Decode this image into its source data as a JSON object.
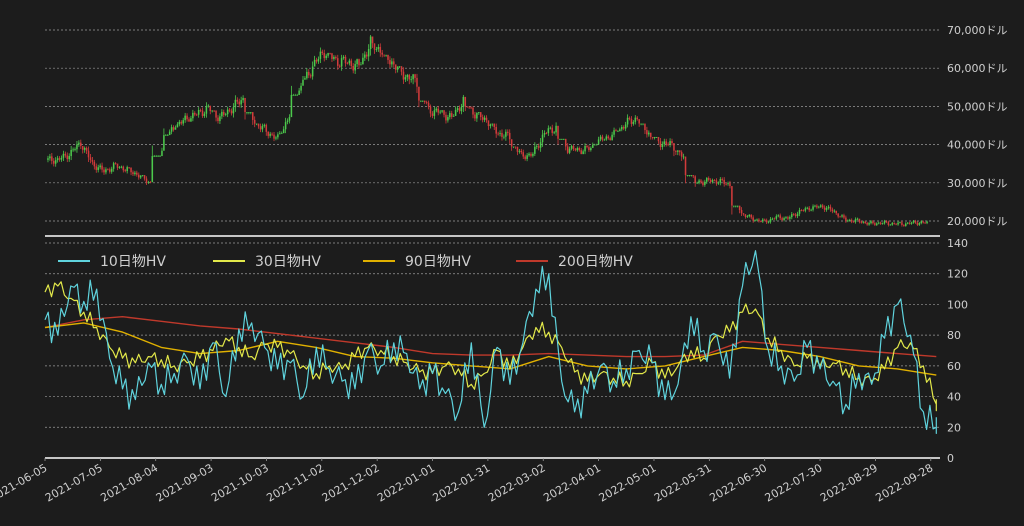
{
  "colors": {
    "background": "#1c1c1c",
    "grid": "#9a9a9a",
    "axis_text": "#cfcfcf",
    "candle_up": "#4cc94c",
    "candle_down": "#d23b3b",
    "hv10": "#5fd3dd",
    "hv30": "#e2e84a",
    "hv90": "#e0b000",
    "hv200": "#c0392b"
  },
  "chart_data": [
    {
      "type": "candlestick",
      "title": "",
      "ylim": [
        15000,
        70000
      ],
      "yticks": [
        20000,
        30000,
        40000,
        50000,
        60000,
        70000
      ],
      "ytick_labels": [
        "20,000ドル",
        "30,000ドル",
        "40,000ドル",
        "50,000ドル",
        "60,000ドル",
        "70,000ドル"
      ],
      "grid": true,
      "x_start": "2021-06-05",
      "x_end": "2022-10-03",
      "series": [
        {
          "granularity": "weekly",
          "close": [
            36000,
            37500,
            40500,
            35000,
            33000,
            34500,
            33500,
            32000,
            30000,
            39000,
            44500,
            46500,
            48000,
            49500,
            47000,
            49500,
            52000,
            46000,
            43500,
            41500,
            47500,
            55000,
            60500,
            64500,
            62000,
            61500,
            60500,
            66500,
            64500,
            61000,
            58000,
            56500,
            49000,
            48500,
            47000,
            51500,
            48000,
            46500,
            43000,
            42000,
            37000,
            37500,
            43000,
            44500,
            39000,
            38500,
            39000,
            41500,
            42500,
            45500,
            47000,
            43000,
            40500,
            40000,
            36500,
            30000,
            30500,
            30500,
            29500,
            22000,
            20500,
            19800,
            21000,
            20700,
            22500,
            23500,
            23800,
            22500,
            20200,
            20100,
            19300,
            19500,
            19300,
            19200,
            19600,
            19500
          ],
          "high": [
            38500,
            40000,
            41500,
            39500,
            36000,
            35500,
            34500,
            34000,
            32000,
            41000,
            46000,
            48500,
            50000,
            51500,
            49000,
            51000,
            53000,
            48500,
            45500,
            43500,
            49000,
            57000,
            62500,
            66500,
            64000,
            63500,
            62500,
            68700,
            66500,
            63500,
            60500,
            58500,
            51500,
            50500,
            49000,
            53000,
            50000,
            48500,
            45500,
            44000,
            39500,
            39000,
            44500,
            46000,
            41500,
            40000,
            40500,
            43000,
            44500,
            47500,
            48300,
            45500,
            42000,
            42000,
            38500,
            32000,
            31500,
            32000,
            31500,
            24000,
            21800,
            21500,
            22300,
            22500,
            24000,
            25000,
            25200,
            24500,
            22000,
            21800,
            20500,
            20800,
            20300,
            20200,
            20400,
            20300
          ],
          "low": [
            32000,
            34000,
            35000,
            31000,
            30500,
            32000,
            31000,
            29500,
            29000,
            37000,
            42500,
            44500,
            46000,
            47000,
            44500,
            46500,
            46000,
            40500,
            40000,
            39500,
            43000,
            53000,
            57000,
            61000,
            60000,
            59000,
            58000,
            61000,
            59000,
            56000,
            54500,
            47000,
            46500,
            45500,
            45500,
            47500,
            45500,
            43000,
            39000,
            35500,
            33500,
            35500,
            37000,
            42000,
            37500,
            37500,
            37500,
            40000,
            41000,
            43500,
            44500,
            39500,
            38000,
            36000,
            28500,
            27000,
            28500,
            28500,
            26700,
            17700,
            18500,
            18800,
            18800,
            19500,
            20000,
            21800,
            22500,
            20000,
            19500,
            18800,
            18200,
            18600,
            18400,
            18100,
            18500,
            18400
          ]
        }
      ]
    },
    {
      "type": "line",
      "title": "",
      "ylim": [
        0,
        140
      ],
      "yticks": [
        0,
        20,
        40,
        60,
        80,
        100,
        120,
        140
      ],
      "grid": true,
      "x_start": "2021-06-05",
      "x_end": "2022-10-03",
      "x_ticks": [
        "2021-06-05",
        "2021-07-05",
        "2021-08-04",
        "2021-09-03",
        "2021-10-03",
        "2021-11-02",
        "2021-12-02",
        "2022-01-01",
        "2022-01-31",
        "2022-03-02",
        "2022-04-01",
        "2022-05-01",
        "2022-05-31",
        "2022-06-30",
        "2022-07-30",
        "2022-08-29",
        "2022-09-28"
      ],
      "legend_position": "top-left",
      "series": [
        {
          "name": "10日物HV",
          "color_key": "hv10",
          "x": [
            "2021-06-05",
            "2021-06-12",
            "2021-06-19",
            "2021-06-26",
            "2021-07-03",
            "2021-07-10",
            "2021-07-17",
            "2021-07-24",
            "2021-07-31",
            "2021-08-07",
            "2021-08-14",
            "2021-08-21",
            "2021-08-28",
            "2021-09-04",
            "2021-09-11",
            "2021-09-18",
            "2021-09-25",
            "2021-10-02",
            "2021-10-09",
            "2021-10-16",
            "2021-10-23",
            "2021-10-30",
            "2021-11-06",
            "2021-11-13",
            "2021-11-20",
            "2021-11-27",
            "2021-12-04",
            "2021-12-11",
            "2021-12-18",
            "2021-12-25",
            "2022-01-01",
            "2022-01-08",
            "2022-01-15",
            "2022-01-22",
            "2022-01-29",
            "2022-02-05",
            "2022-02-12",
            "2022-02-19",
            "2022-02-26",
            "2022-03-05",
            "2022-03-12",
            "2022-03-19",
            "2022-03-26",
            "2022-04-02",
            "2022-04-09",
            "2022-04-16",
            "2022-04-23",
            "2022-04-30",
            "2022-05-07",
            "2022-05-14",
            "2022-05-21",
            "2022-05-28",
            "2022-06-04",
            "2022-06-11",
            "2022-06-18",
            "2022-06-25",
            "2022-07-02",
            "2022-07-09",
            "2022-07-16",
            "2022-07-23",
            "2022-07-30",
            "2022-08-06",
            "2022-08-13",
            "2022-08-20",
            "2022-08-27",
            "2022-09-03",
            "2022-09-10",
            "2022-09-17",
            "2022-09-24",
            "2022-10-01"
          ],
          "values": [
            90,
            80,
            112,
            102,
            110,
            65,
            45,
            38,
            62,
            48,
            55,
            65,
            45,
            75,
            40,
            84,
            88,
            72,
            58,
            62,
            40,
            72,
            58,
            50,
            45,
            70,
            60,
            75,
            68,
            45,
            55,
            42,
            30,
            75,
            20,
            72,
            48,
            75,
            110,
            120,
            50,
            30,
            42,
            60,
            50,
            58,
            70,
            62,
            38,
            48,
            92,
            70,
            80,
            52,
            112,
            135,
            70,
            60,
            50,
            72,
            58,
            50,
            35,
            55,
            48,
            78,
            100,
            80,
            30,
            20
          ]
        },
        {
          "name": "30日物HV",
          "color_key": "hv30",
          "x": [
            "2021-06-05",
            "2021-06-12",
            "2021-06-19",
            "2021-06-26",
            "2021-07-03",
            "2021-07-10",
            "2021-07-17",
            "2021-07-24",
            "2021-07-31",
            "2021-08-07",
            "2021-08-14",
            "2021-08-21",
            "2021-08-28",
            "2021-09-04",
            "2021-09-11",
            "2021-09-18",
            "2021-09-25",
            "2021-10-02",
            "2021-10-09",
            "2021-10-16",
            "2021-10-23",
            "2021-10-30",
            "2021-11-06",
            "2021-11-13",
            "2021-11-20",
            "2021-11-27",
            "2021-12-04",
            "2021-12-11",
            "2021-12-18",
            "2021-12-25",
            "2022-01-01",
            "2022-01-08",
            "2022-01-15",
            "2022-01-22",
            "2022-01-29",
            "2022-02-05",
            "2022-02-12",
            "2022-02-19",
            "2022-02-26",
            "2022-03-05",
            "2022-03-12",
            "2022-03-19",
            "2022-03-26",
            "2022-04-02",
            "2022-04-09",
            "2022-04-16",
            "2022-04-23",
            "2022-04-30",
            "2022-05-07",
            "2022-05-14",
            "2022-05-21",
            "2022-05-28",
            "2022-06-04",
            "2022-06-11",
            "2022-06-18",
            "2022-06-25",
            "2022-07-02",
            "2022-07-09",
            "2022-07-16",
            "2022-07-23",
            "2022-07-30",
            "2022-08-06",
            "2022-08-13",
            "2022-08-20",
            "2022-08-27",
            "2022-09-03",
            "2022-09-10",
            "2022-09-17",
            "2022-09-24",
            "2022-10-01"
          ],
          "values": [
            108,
            112,
            104,
            95,
            85,
            72,
            65,
            62,
            66,
            64,
            60,
            62,
            65,
            70,
            78,
            72,
            66,
            74,
            72,
            68,
            60,
            55,
            60,
            58,
            66,
            72,
            70,
            66,
            62,
            56,
            55,
            60,
            58,
            48,
            55,
            70,
            58,
            72,
            85,
            82,
            72,
            56,
            50,
            55,
            52,
            50,
            55,
            62,
            52,
            60,
            70,
            65,
            80,
            82,
            95,
            97,
            78,
            70,
            60,
            65,
            60,
            62,
            58,
            52,
            50,
            58,
            72,
            75,
            60,
            35
          ]
        },
        {
          "name": "90日物HV",
          "color_key": "hv90",
          "x": [
            "2021-06-05",
            "2021-06-26",
            "2021-07-17",
            "2021-08-07",
            "2021-08-28",
            "2021-09-18",
            "2021-10-09",
            "2021-10-30",
            "2021-11-20",
            "2021-12-11",
            "2022-01-01",
            "2022-01-22",
            "2022-02-12",
            "2022-03-05",
            "2022-03-26",
            "2022-04-16",
            "2022-05-07",
            "2022-05-28",
            "2022-06-18",
            "2022-07-09",
            "2022-07-30",
            "2022-08-20",
            "2022-09-10",
            "2022-10-01"
          ],
          "values": [
            85,
            88,
            82,
            72,
            68,
            70,
            76,
            72,
            66,
            65,
            62,
            60,
            58,
            66,
            60,
            58,
            60,
            66,
            72,
            70,
            66,
            60,
            58,
            54
          ]
        },
        {
          "name": "200日物HV",
          "color_key": "hv200",
          "x": [
            "2021-06-05",
            "2021-06-26",
            "2021-07-17",
            "2021-08-07",
            "2021-08-28",
            "2021-09-18",
            "2021-10-09",
            "2021-10-30",
            "2021-11-20",
            "2021-12-11",
            "2022-01-01",
            "2022-01-22",
            "2022-02-12",
            "2022-03-05",
            "2022-03-26",
            "2022-04-16",
            "2022-05-07",
            "2022-05-28",
            "2022-06-18",
            "2022-07-09",
            "2022-07-30",
            "2022-08-20",
            "2022-09-10",
            "2022-10-01"
          ],
          "values": [
            85,
            90,
            92,
            89,
            86,
            84,
            81,
            78,
            75,
            72,
            68,
            67,
            67,
            68,
            67,
            66,
            66,
            67,
            76,
            74,
            72,
            70,
            68,
            66
          ]
        }
      ]
    }
  ]
}
